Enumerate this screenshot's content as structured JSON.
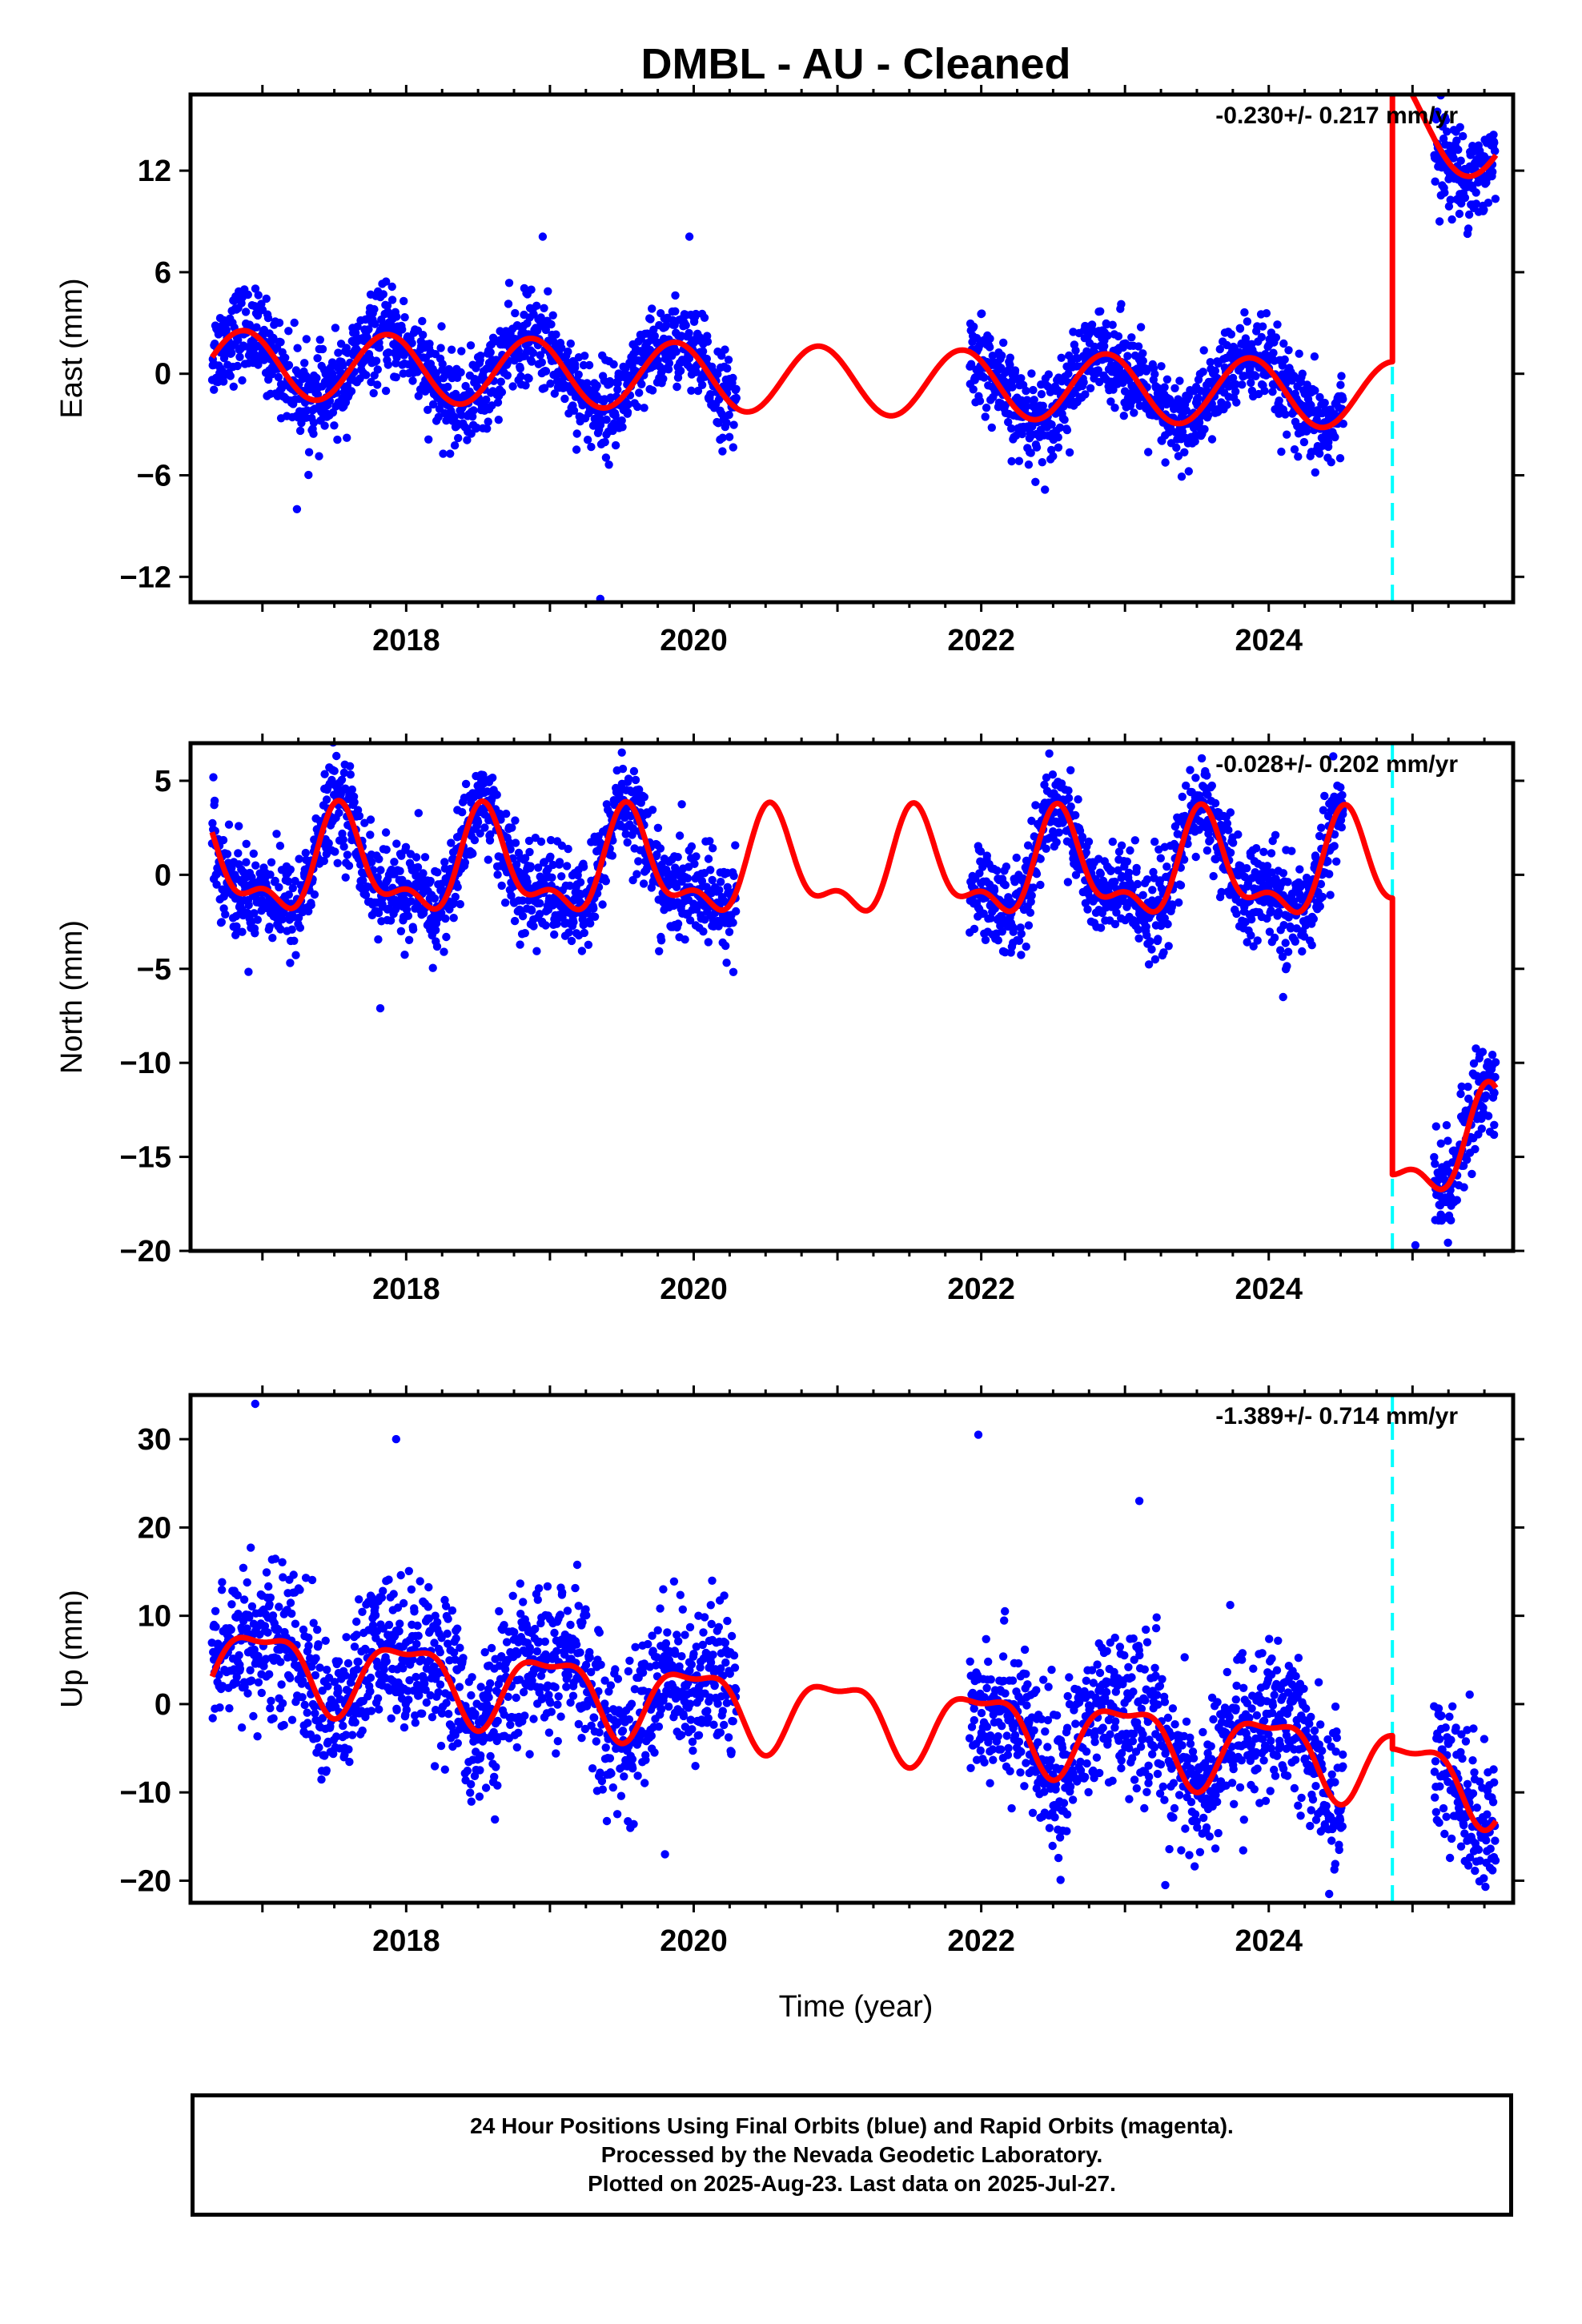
{
  "title": "DMBL  - AU - Cleaned",
  "xlabel": "Time (year)",
  "footer": {
    "line1": "24 Hour Positions Using Final Orbits (blue) and Rapid Orbits (magenta).",
    "line2": "Processed by the Nevada Geodetic Laboratory.",
    "line3": "Plotted on 2025-Aug-23. Last data on 2025-Jul-27."
  },
  "colors": {
    "data": "#0000ff",
    "model": "#ff0000",
    "offset": "#00ffff",
    "frame": "#000000"
  },
  "chart_data": [
    {
      "type": "scatter",
      "name": "east",
      "ylabel": "East (mm)",
      "rate": "-0.230+/- 0.217 mm/yr",
      "xlim": [
        2016.5,
        2025.7
      ],
      "ylim": [
        -13.5,
        16.5
      ],
      "yticks": [
        -12,
        -6,
        0,
        6,
        12
      ],
      "yticklabels": [
        "−12",
        "−6",
        "0",
        "6",
        "12"
      ],
      "xticks": [
        2018,
        2020,
        2022,
        2024
      ],
      "xticklabels": [
        "2018",
        "2020",
        "2022",
        "2024"
      ],
      "offset_x": 2024.86,
      "data_ranges": [
        [
          2016.65,
          2020.3
        ],
        [
          2021.92,
          2024.52
        ],
        [
          2025.15,
          2025.58
        ]
      ],
      "model": {
        "amp": 2.0,
        "phase": 2017.87,
        "semi": 0.0,
        "semi_phase": 2017.0,
        "base": 0.6,
        "trend": -0.23,
        "ref": 2016.65,
        "post_base": 14.7,
        "post_decay": 3.0,
        "post_tau": 0.25
      },
      "noise": 1.3,
      "outliers": [
        [
          2017.24,
          -8.0
        ],
        [
          2019.35,
          -13.3
        ],
        [
          2018.95,
          8.1
        ],
        [
          2019.97,
          8.1
        ]
      ]
    },
    {
      "type": "scatter",
      "name": "north",
      "ylabel": "North (mm)",
      "rate": "-0.028+/- 0.202 mm/yr",
      "xlim": [
        2016.5,
        2025.7
      ],
      "ylim": [
        -20,
        7
      ],
      "yticks": [
        -20,
        -15,
        -10,
        -5,
        0,
        5
      ],
      "yticklabels": [
        "−20",
        "−15",
        "−10",
        "−5",
        "0",
        "5"
      ],
      "xticks": [
        2018,
        2020,
        2022,
        2024
      ],
      "xticklabels": [
        "2018",
        "2020",
        "2022",
        "2024"
      ],
      "offset_x": 2024.86,
      "data_ranges": [
        [
          2016.65,
          2020.3
        ],
        [
          2021.92,
          2024.52
        ],
        [
          2025.15,
          2025.58
        ]
      ],
      "model": {
        "amp": 2.4,
        "phase": 2017.55,
        "semi": 1.2,
        "semi_phase": 2017.52,
        "base": 0.4,
        "trend": -0.03,
        "ref": 2016.65,
        "post_base": -14.7,
        "post_decay": 0.0,
        "post_tau": 1.0
      },
      "noise": 1.25,
      "outliers": [
        [
          2017.82,
          -7.1
        ],
        [
          2024.1,
          -6.5
        ],
        [
          2019.5,
          6.5
        ],
        [
          2025.02,
          -19.7
        ]
      ]
    },
    {
      "type": "scatter",
      "name": "up",
      "ylabel": "Up (mm)",
      "rate": "-1.389+/- 0.714 mm/yr",
      "xlim": [
        2016.5,
        2025.7
      ],
      "ylim": [
        -22.5,
        35
      ],
      "yticks": [
        -20,
        -10,
        0,
        10,
        20,
        30
      ],
      "yticklabels": [
        "−20",
        "−10",
        "0",
        "10",
        "20",
        "30"
      ],
      "xticks": [
        2018,
        2020,
        2022,
        2024
      ],
      "xticklabels": [
        "2018",
        "2020",
        "2022",
        "2024"
      ],
      "offset_x": 2024.86,
      "data_ranges": [
        [
          2016.65,
          2020.3
        ],
        [
          2021.92,
          2024.52
        ],
        [
          2025.15,
          2025.58
        ]
      ],
      "model": {
        "amp": 4.0,
        "phase": 2017.0,
        "semi": 1.5,
        "semi_phase": 2017.25,
        "base": 5.0,
        "trend": -1.39,
        "ref": 2016.65,
        "post_base": -1.5,
        "post_decay": 0.0,
        "post_tau": 1.0
      },
      "noise": 4.2,
      "outliers": [
        [
          2016.95,
          34.0
        ],
        [
          2017.93,
          30.0
        ],
        [
          2021.98,
          30.5
        ],
        [
          2023.1,
          23.0
        ],
        [
          2023.28,
          -20.5
        ],
        [
          2024.42,
          -21.5
        ],
        [
          2019.8,
          -17.0
        ]
      ]
    }
  ]
}
